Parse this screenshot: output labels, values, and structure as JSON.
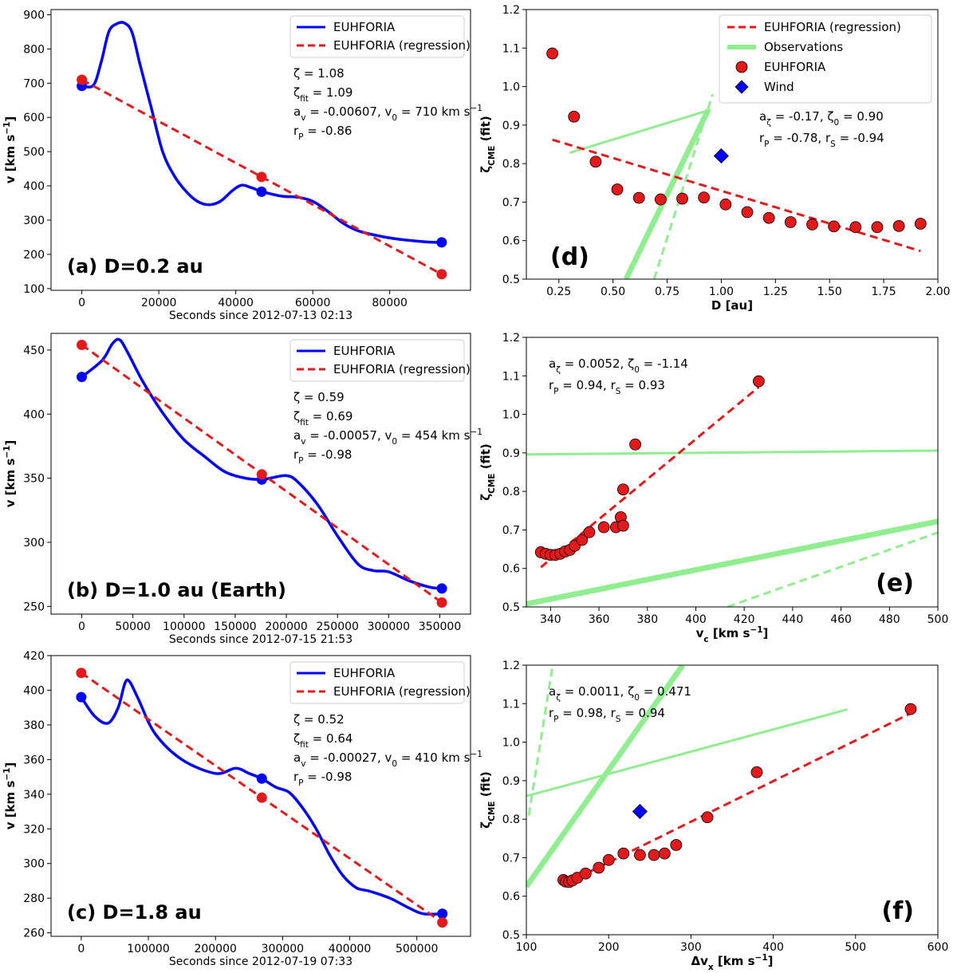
{
  "chart_data": [
    {
      "id": "a",
      "type": "line",
      "panel_label": "(a) D=0.2 au",
      "xlabel": "Seconds since 2012-07-13 02:13",
      "ylabel": "v [km s⁻¹]",
      "xlim": [
        -8000,
        101000
      ],
      "ylim": [
        95,
        915
      ],
      "xticks": [
        0,
        20000,
        40000,
        60000,
        80000
      ],
      "yticks": [
        100,
        200,
        300,
        400,
        500,
        600,
        700,
        800,
        900
      ],
      "legend": [
        "EUHFORIA",
        "EUHFORIA (regression)"
      ],
      "annotations": [
        "ζ = 1.08",
        "ζfit = 1.09",
        "av = -0.00607, v0 = 710 km s⁻¹",
        "rP = -0.86"
      ],
      "series": [
        {
          "name": "EUHFORIA",
          "color": "#0000ff",
          "x": [
            0,
            3000,
            5000,
            7000,
            9000,
            11000,
            13000,
            15000,
            18000,
            21000,
            24000,
            27000,
            30000,
            33000,
            36000,
            39000,
            41500,
            44000,
            47000,
            52000,
            56000,
            60000,
            64000,
            68000,
            72000,
            78000,
            84000,
            90000,
            93500
          ],
          "y": [
            692,
            694,
            760,
            850,
            873,
            876,
            850,
            760,
            630,
            500,
            430,
            385,
            355,
            345,
            355,
            385,
            402,
            395,
            383,
            370,
            367,
            355,
            325,
            290,
            268,
            252,
            242,
            236,
            235
          ]
        },
        {
          "name": "EUHFORIA (regression)",
          "color": "#e31a1c",
          "x": [
            0,
            93500
          ],
          "y": [
            710,
            142
          ]
        },
        {
          "name": "EUHFORIA points",
          "color": "#0000ff",
          "x": [
            0,
            46700,
            93500
          ],
          "y": [
            692,
            383,
            235
          ]
        },
        {
          "name": "Regression points",
          "color": "#e31a1c",
          "x": [
            0,
            46700,
            93500
          ],
          "y": [
            710,
            426,
            142
          ]
        }
      ]
    },
    {
      "id": "b",
      "type": "line",
      "panel_label": "(b) D=1.0 au (Earth)",
      "xlabel": "Seconds since 2012-07-15 21:53",
      "ylabel": "v [km s⁻¹]",
      "xlim": [
        -30000,
        380000
      ],
      "ylim": [
        244,
        463
      ],
      "xticks": [
        0,
        50000,
        100000,
        150000,
        200000,
        250000,
        300000,
        350000
      ],
      "yticks": [
        250,
        300,
        350,
        400,
        450
      ],
      "legend": [
        "EUHFORIA",
        "EUHFORIA (regression)"
      ],
      "annotations": [
        "ζ = 0.59",
        "ζfit = 0.69",
        "av = -0.00057, v0 = 454 km s⁻¹",
        "rP = -0.98"
      ],
      "series": [
        {
          "name": "EUHFORIA",
          "color": "#0000ff",
          "x": [
            0,
            20000,
            30000,
            37000,
            45000,
            60000,
            80000,
            100000,
            120000,
            140000,
            160000,
            176000,
            190000,
            200000,
            210000,
            230000,
            250000,
            270000,
            285000,
            300000,
            320000,
            340000,
            352000
          ],
          "y": [
            429,
            442,
            455,
            458,
            448,
            425,
            400,
            380,
            367,
            355,
            350,
            349,
            351,
            352,
            348,
            330,
            305,
            283,
            278,
            277,
            270,
            265,
            264
          ]
        },
        {
          "name": "EUHFORIA (regression)",
          "color": "#e31a1c",
          "x": [
            0,
            352000
          ],
          "y": [
            454,
            253
          ]
        },
        {
          "name": "EUHFORIA points",
          "color": "#0000ff",
          "x": [
            0,
            176000,
            352000
          ],
          "y": [
            429,
            349,
            264
          ]
        },
        {
          "name": "Regression points",
          "color": "#e31a1c",
          "x": [
            0,
            176000,
            352000
          ],
          "y": [
            454,
            353,
            253
          ]
        }
      ]
    },
    {
      "id": "c",
      "type": "line",
      "panel_label": "(c) D=1.8 au",
      "xlabel": "Seconds since 2012-07-19 07:33",
      "ylabel": "v [km s⁻¹]",
      "xlim": [
        -45000,
        580000
      ],
      "ylim": [
        258,
        420
      ],
      "xticks": [
        0,
        100000,
        200000,
        300000,
        400000,
        500000
      ],
      "yticks": [
        260,
        280,
        300,
        320,
        340,
        360,
        380,
        400,
        420
      ],
      "legend": [
        "EUHFORIA",
        "EUHFORIA (regression)"
      ],
      "annotations": [
        "ζ = 0.52",
        "ζfit = 0.64",
        "av = -0.00027, v0 = 410 km s⁻¹",
        "rP = -0.98"
      ],
      "series": [
        {
          "name": "EUHFORIA",
          "color": "#0000ff",
          "x": [
            0,
            20000,
            40000,
            55000,
            65000,
            72000,
            85000,
            110000,
            150000,
            200000,
            230000,
            250000,
            269000,
            290000,
            310000,
            330000,
            350000,
            370000,
            390000,
            410000,
            430000,
            460000,
            490000,
            510000,
            538000
          ],
          "y": [
            396,
            385,
            381,
            390,
            404,
            405,
            395,
            375,
            360,
            352,
            355,
            352,
            349,
            344,
            341,
            332,
            320,
            305,
            293,
            286,
            284,
            280,
            274,
            271,
            271
          ]
        },
        {
          "name": "EUHFORIA (regression)",
          "color": "#e31a1c",
          "x": [
            0,
            538000
          ],
          "y": [
            410,
            266
          ]
        },
        {
          "name": "EUHFORIA points",
          "color": "#0000ff",
          "x": [
            0,
            269000,
            538000
          ],
          "y": [
            396,
            349,
            271
          ]
        },
        {
          "name": "Regression points",
          "color": "#e31a1c",
          "x": [
            0,
            269000,
            538000
          ],
          "y": [
            410,
            338,
            266
          ]
        }
      ]
    },
    {
      "id": "d",
      "type": "scatter",
      "panel_label": "(d)",
      "xlabel": "D [au]",
      "ylabel": "ζCME (fit)",
      "xlim": [
        0.1,
        2.0
      ],
      "ylim": [
        0.5,
        1.2
      ],
      "xticks": [
        0.25,
        0.5,
        0.75,
        1.0,
        1.25,
        1.5,
        1.75,
        2.0
      ],
      "xticklabels": [
        "0.25",
        "0.50",
        "0.75",
        "1.00",
        "1.25",
        "1.50",
        "1.75",
        "2.00"
      ],
      "yticks": [
        0.5,
        0.6,
        0.7,
        0.8,
        0.9,
        1.0,
        1.1,
        1.2
      ],
      "legend": [
        "EUHFORIA (regression)",
        "Observations",
        "EUHFORIA",
        "Wind"
      ],
      "annotations": [
        "aζ = -0.17, ζ0 = 0.90",
        "rP = -0.78, rS = -0.94"
      ],
      "series": [
        {
          "name": "EUHFORIA",
          "color": "#e31a1c",
          "x": [
            0.22,
            0.32,
            0.42,
            0.52,
            0.62,
            0.72,
            0.82,
            0.92,
            1.02,
            1.12,
            1.22,
            1.32,
            1.42,
            1.52,
            1.62,
            1.72,
            1.82,
            1.92
          ],
          "y": [
            1.086,
            0.922,
            0.805,
            0.733,
            0.711,
            0.707,
            0.709,
            0.712,
            0.694,
            0.674,
            0.659,
            0.648,
            0.642,
            0.637,
            0.635,
            0.635,
            0.638,
            0.644
          ]
        },
        {
          "name": "EUHFORIA (regression)",
          "color": "#e31a1c",
          "x": [
            0.22,
            1.92
          ],
          "y": [
            0.862,
            0.573
          ]
        },
        {
          "name": "Wind",
          "color": "#0000ff",
          "x": [
            1.0
          ],
          "y": [
            0.82
          ]
        },
        {
          "name": "Observations (thin)",
          "color": "#90ee90",
          "x": [
            0.3,
            0.95
          ],
          "y": [
            0.828,
            0.94
          ]
        },
        {
          "name": "Observations (thick)",
          "color": "#90ee90",
          "x": [
            0.56,
            0.94
          ],
          "y": [
            0.5,
            0.94
          ]
        },
        {
          "name": "Observations (dashed)",
          "color": "#90ee90",
          "x": [
            0.69,
            0.96
          ],
          "y": [
            0.5,
            0.98
          ]
        }
      ]
    },
    {
      "id": "e",
      "type": "scatter",
      "panel_label": "(e)",
      "xlabel": "vc [km s⁻¹]",
      "ylabel": "ζCME (fit)",
      "xlim": [
        330,
        500
      ],
      "ylim": [
        0.5,
        1.2
      ],
      "xticks": [
        340,
        360,
        380,
        400,
        420,
        440,
        460,
        480,
        500
      ],
      "yticks": [
        0.5,
        0.6,
        0.7,
        0.8,
        0.9,
        1.0,
        1.1,
        1.2
      ],
      "annotations": [
        "aζ = 0.0052, ζ0 = -1.14",
        "rP = 0.94, rS = 0.93"
      ],
      "series": [
        {
          "name": "EUHFORIA",
          "color": "#e31a1c",
          "x": [
            336,
            338,
            340,
            342,
            344,
            346,
            348,
            350,
            353,
            356,
            362,
            367,
            369,
            370,
            370,
            375,
            426
          ],
          "y": [
            0.642,
            0.638,
            0.635,
            0.635,
            0.638,
            0.644,
            0.648,
            0.659,
            0.674,
            0.694,
            0.707,
            0.707,
            0.733,
            0.711,
            0.805,
            0.922,
            1.086
          ]
        },
        {
          "name": "EUHFORIA (regression)",
          "color": "#e31a1c",
          "x": [
            336,
            426
          ],
          "y": [
            0.603,
            1.071
          ]
        },
        {
          "name": "Observations (thin)",
          "color": "#90ee90",
          "x": [
            330,
            500
          ],
          "y": [
            0.896,
            0.906
          ]
        },
        {
          "name": "Observations (thick)",
          "color": "#90ee90",
          "x": [
            330,
            500
          ],
          "y": [
            0.508,
            0.722
          ]
        },
        {
          "name": "Observations (dashed)",
          "color": "#90ee90",
          "x": [
            413,
            500
          ],
          "y": [
            0.5,
            0.693
          ]
        }
      ]
    },
    {
      "id": "f",
      "type": "scatter",
      "panel_label": "(f)",
      "xlabel": "Δvx [km s⁻¹]",
      "ylabel": "ζCME (fit)",
      "xlim": [
        100,
        600
      ],
      "ylim": [
        0.5,
        1.2
      ],
      "xticks": [
        100,
        200,
        300,
        400,
        500,
        600
      ],
      "yticks": [
        0.5,
        0.6,
        0.7,
        0.8,
        0.9,
        1.0,
        1.1,
        1.2
      ],
      "annotations": [
        "aζ = 0.0011, ζ0 = 0.471",
        "rP = 0.98, rS = 0.94"
      ],
      "series": [
        {
          "name": "EUHFORIA",
          "color": "#e31a1c",
          "x": [
            145,
            148,
            152,
            156,
            162,
            172,
            188,
            200,
            218,
            238,
            255,
            268,
            282,
            320,
            380,
            567
          ],
          "y": [
            0.642,
            0.638,
            0.637,
            0.641,
            0.648,
            0.659,
            0.674,
            0.694,
            0.711,
            0.707,
            0.707,
            0.711,
            0.733,
            0.805,
            0.922,
            1.086
          ]
        },
        {
          "name": "EUHFORIA (regression)",
          "color": "#e31a1c",
          "x": [
            145,
            567
          ],
          "y": [
            0.63,
            1.075
          ]
        },
        {
          "name": "Wind",
          "color": "#0000ff",
          "x": [
            238
          ],
          "y": [
            0.82
          ]
        },
        {
          "name": "Observations (thin)",
          "color": "#90ee90",
          "x": [
            100,
            490
          ],
          "y": [
            0.86,
            1.085
          ]
        },
        {
          "name": "Observations (thick)",
          "color": "#90ee90",
          "x": [
            100,
            290
          ],
          "y": [
            0.625,
            1.2
          ]
        },
        {
          "name": "Observations (dashed)",
          "color": "#90ee90",
          "x": [
            103,
            132
          ],
          "y": [
            0.81,
            1.2
          ]
        }
      ]
    }
  ]
}
